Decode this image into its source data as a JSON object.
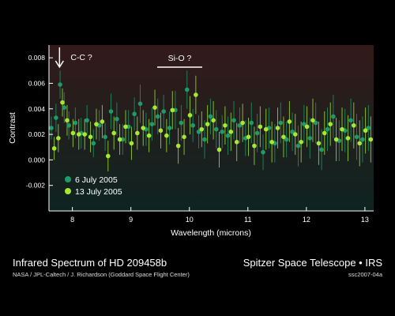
{
  "caption": {
    "title": "Infrared Spectrum of HD 209458b",
    "credit": "NASA / JPL-Caltech / J. Richardson (Goddard Space Flight Center)",
    "telescope": "Spitzer Space Telescope • IRS",
    "image_id": "ssc2007-04a"
  },
  "chart_data": {
    "type": "scatter",
    "title": "",
    "xlabel": "Wavelength (microns)",
    "ylabel": "Contrast",
    "xlim": [
      7.6,
      13.15
    ],
    "ylim": [
      -0.004,
      0.009
    ],
    "xticks": [
      8,
      9,
      10,
      11,
      12,
      13
    ],
    "yticks": [
      -0.002,
      0.0,
      0.002,
      0.004,
      0.006,
      0.008
    ],
    "ytick_labels": [
      "-0.002",
      "0.000",
      "0.002",
      "0.004",
      "0.006",
      "0.008"
    ],
    "grid": false,
    "legend_position": "bottom-left",
    "colors": {
      "series1": "#1f9a6a",
      "series2": "#a8e832",
      "background_top": "#331a1a",
      "background_bottom": "#0e2420"
    },
    "annotations": [
      {
        "label": "C-C ?",
        "x": 7.78,
        "marker": "down-arrow"
      },
      {
        "label": "Si-O ?",
        "x_from": 9.45,
        "x_to": 10.22,
        "marker": "bracket-line"
      }
    ],
    "series": [
      {
        "name": "6 July 2005",
        "x": [
          7.64,
          7.72,
          7.79,
          7.86,
          7.94,
          8.05,
          8.15,
          8.25,
          8.36,
          8.46,
          8.56,
          8.66,
          8.76,
          8.86,
          8.96,
          9.06,
          9.16,
          9.26,
          9.36,
          9.46,
          9.56,
          9.66,
          9.76,
          9.86,
          9.96,
          10.06,
          10.16,
          10.26,
          10.36,
          10.46,
          10.56,
          10.66,
          10.76,
          10.86,
          10.96,
          11.06,
          11.16,
          11.26,
          11.36,
          11.46,
          11.56,
          11.66,
          11.76,
          11.86,
          11.96,
          12.06,
          12.16,
          12.26,
          12.36,
          12.46,
          12.56,
          12.66,
          12.76,
          12.86,
          12.96,
          13.06
        ],
        "y": [
          0.0025,
          0.0033,
          0.0059,
          0.0041,
          0.0027,
          0.0029,
          0.0021,
          0.0031,
          0.0013,
          0.0027,
          0.0018,
          0.0038,
          0.0032,
          0.0016,
          0.0026,
          0.0036,
          0.0044,
          0.0024,
          0.0028,
          0.0034,
          0.0038,
          0.0025,
          0.0039,
          0.0029,
          0.0055,
          0.0027,
          0.0022,
          0.0016,
          0.0034,
          0.0024,
          0.0022,
          0.0019,
          0.0031,
          0.0027,
          0.0017,
          0.0029,
          0.0021,
          0.0006,
          0.0025,
          0.0013,
          0.0029,
          0.0016,
          0.0022,
          0.0011,
          0.0028,
          0.0017,
          0.0029,
          0.0008,
          0.0024,
          0.0034,
          0.0015,
          0.0023,
          0.0031,
          0.0018,
          0.0016,
          0.0025
        ],
        "yerr": [
          0.0009,
          0.0011,
          0.0011,
          0.0012,
          0.0011,
          0.0012,
          0.0012,
          0.0012,
          0.0011,
          0.0012,
          0.0011,
          0.0014,
          0.0013,
          0.0012,
          0.0013,
          0.0013,
          0.0015,
          0.0013,
          0.0013,
          0.0014,
          0.0013,
          0.0013,
          0.0015,
          0.0014,
          0.0015,
          0.0013,
          0.0013,
          0.0015,
          0.0014,
          0.0015,
          0.0013,
          0.0015,
          0.0015,
          0.0014,
          0.0014,
          0.0016,
          0.0015,
          0.0014,
          0.0016,
          0.0015,
          0.0016,
          0.0014,
          0.0015,
          0.0016,
          0.0015,
          0.0016,
          0.0016,
          0.0016,
          0.0017,
          0.0017,
          0.0016,
          0.0017,
          0.0017,
          0.0018,
          0.0018,
          0.0018
        ]
      },
      {
        "name": "13 July 2005",
        "x": [
          7.69,
          7.76,
          7.83,
          7.91,
          8.01,
          8.11,
          8.21,
          8.31,
          8.41,
          8.51,
          8.61,
          8.71,
          8.81,
          8.91,
          9.01,
          9.11,
          9.21,
          9.31,
          9.41,
          9.51,
          9.61,
          9.71,
          9.81,
          9.91,
          10.01,
          10.11,
          10.21,
          10.31,
          10.41,
          10.51,
          10.61,
          10.71,
          10.81,
          10.91,
          11.01,
          11.11,
          11.21,
          11.31,
          11.41,
          11.51,
          11.61,
          11.71,
          11.81,
          11.91,
          12.01,
          12.11,
          12.21,
          12.31,
          12.41,
          12.51,
          12.61,
          12.71,
          12.81,
          12.91,
          13.01,
          13.1
        ],
        "y": [
          0.0009,
          0.0017,
          0.0045,
          0.0031,
          0.0021,
          0.002,
          0.002,
          0.0018,
          0.0028,
          0.003,
          0.0003,
          0.0021,
          0.0016,
          0.0026,
          0.0013,
          0.0021,
          0.0025,
          0.0019,
          0.0041,
          0.0023,
          0.0019,
          0.0039,
          0.0011,
          0.0018,
          0.0035,
          0.0051,
          0.0024,
          0.0028,
          0.0031,
          0.0008,
          0.0027,
          0.0022,
          0.0014,
          0.0029,
          0.0018,
          0.0011,
          0.0026,
          0.0024,
          0.0014,
          0.0025,
          0.0018,
          0.003,
          0.002,
          0.0014,
          0.0026,
          0.0031,
          0.0013,
          0.0021,
          0.0028,
          0.0016,
          0.0024,
          0.0017,
          0.0027,
          0.0013,
          0.0023,
          0.0016
        ],
        "yerr": [
          0.0009,
          0.0011,
          0.0011,
          0.0012,
          0.0011,
          0.0012,
          0.0012,
          0.0012,
          0.0012,
          0.0013,
          0.0012,
          0.0013,
          0.0012,
          0.0013,
          0.0013,
          0.0013,
          0.0014,
          0.0013,
          0.0014,
          0.0014,
          0.0013,
          0.0015,
          0.0014,
          0.0014,
          0.0015,
          0.0015,
          0.0014,
          0.0015,
          0.0015,
          0.0014,
          0.0015,
          0.0015,
          0.0015,
          0.0015,
          0.0015,
          0.0015,
          0.0016,
          0.0016,
          0.0016,
          0.0016,
          0.0016,
          0.0016,
          0.0016,
          0.0016,
          0.0016,
          0.0017,
          0.0017,
          0.0017,
          0.0017,
          0.0017,
          0.0017,
          0.0018,
          0.0018,
          0.0018,
          0.0018,
          0.0018
        ]
      }
    ]
  }
}
